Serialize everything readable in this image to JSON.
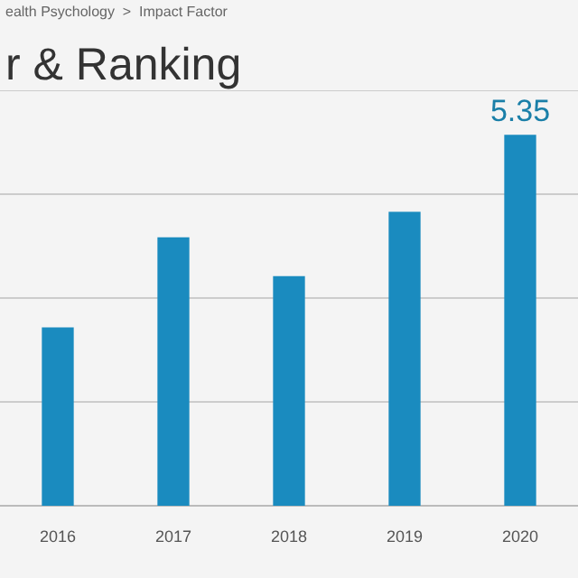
{
  "chart_data": {
    "type": "bar",
    "title": "r & Ranking",
    "subtitle": "ealth Psychology  >  Impact Factor",
    "categories": [
      "2016",
      "2017",
      "2018",
      "2019",
      "2020"
    ],
    "values": [
      2.57,
      3.87,
      3.31,
      4.24,
      5.35
    ],
    "ylim": [
      0,
      6
    ],
    "value_labels": [
      null,
      null,
      null,
      null,
      "5.35"
    ],
    "color": "#1a8bbf",
    "grid": "y",
    "tick_labels": "x",
    "legend": false
  }
}
